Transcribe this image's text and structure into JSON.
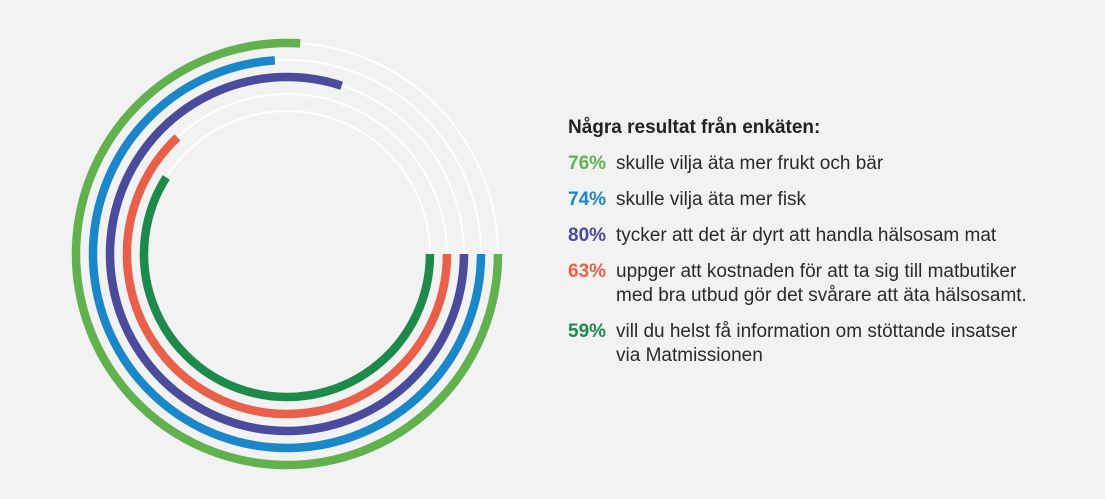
{
  "colors": {
    "background": "#f2f2f2",
    "track": "#ffffff"
  },
  "chart_data": {
    "type": "radial-bar",
    "unit": "%",
    "max": 100,
    "title": "Några resultat från enkäten:",
    "series": [
      {
        "value": 76,
        "label": "76%",
        "color": "#62b14f",
        "text": [
          "skulle vilja äta mer frukt och bär"
        ]
      },
      {
        "value": 74,
        "label": "74%",
        "color": "#1a87c8",
        "text": [
          "skulle vilja äta mer fisk"
        ]
      },
      {
        "value": 80,
        "label": "80%",
        "color": "#4b4b9c",
        "text": [
          "tycker att det är dyrt att handla hälsosam mat"
        ]
      },
      {
        "value": 63,
        "label": "63%",
        "color": "#e9604a",
        "text": [
          "uppger att kostnaden för att ta sig till matbutiker",
          "med bra utbud gör det svårare att äta hälsosamt."
        ]
      },
      {
        "value": 59,
        "label": "59%",
        "color": "#1d8a4c",
        "text": [
          "vill du helst få information om stöttande insatser",
          "via Matmissionen"
        ]
      }
    ]
  }
}
